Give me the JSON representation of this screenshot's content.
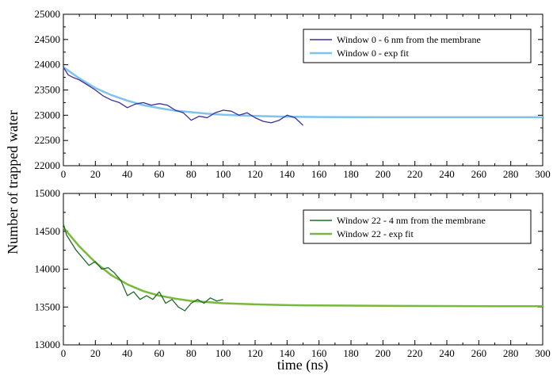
{
  "chart_data": [
    {
      "type": "line",
      "title": "",
      "xlabel": "time (ns)",
      "ylabel": "Number of trapped water",
      "xlim": [
        0,
        300
      ],
      "ylim": [
        22000,
        25000
      ],
      "xticks": [
        0,
        20,
        40,
        60,
        80,
        100,
        120,
        140,
        160,
        180,
        200,
        220,
        240,
        260,
        280,
        300
      ],
      "yticks": [
        22000,
        22500,
        23000,
        23500,
        24000,
        24500,
        25000
      ],
      "grid": false,
      "legend_position": "top-right",
      "series": [
        {
          "name": "Window 0 - 6 nm from the membrane",
          "color": "#3b2f9e",
          "x": [
            0,
            3,
            6,
            10,
            15,
            20,
            25,
            30,
            35,
            40,
            45,
            50,
            55,
            60,
            65,
            70,
            75,
            80,
            85,
            90,
            95,
            100,
            105,
            110,
            115,
            120,
            125,
            130,
            135,
            140,
            145,
            150
          ],
          "y": [
            23950,
            23800,
            23750,
            23700,
            23600,
            23500,
            23380,
            23300,
            23250,
            23150,
            23220,
            23250,
            23200,
            23230,
            23200,
            23100,
            23050,
            22900,
            22980,
            22950,
            23050,
            23100,
            23080,
            23000,
            23050,
            22950,
            22880,
            22850,
            22900,
            23000,
            22950,
            22800
          ]
        },
        {
          "name": "Window 0 - exp fit",
          "color": "#7ec3ea",
          "x": [
            0,
            10,
            20,
            30,
            40,
            50,
            60,
            70,
            80,
            90,
            100,
            120,
            140,
            160,
            200,
            250,
            300
          ],
          "y": [
            23950,
            23730,
            23540,
            23400,
            23290,
            23200,
            23140,
            23090,
            23060,
            23030,
            23010,
            22985,
            22970,
            22965,
            22960,
            22960,
            22960
          ]
        }
      ]
    },
    {
      "type": "line",
      "title": "",
      "xlabel": "time (ns)",
      "ylabel": "Number of trapped water",
      "xlim": [
        0,
        300
      ],
      "ylim": [
        13000,
        15000
      ],
      "xticks": [
        0,
        20,
        40,
        60,
        80,
        100,
        120,
        140,
        160,
        180,
        200,
        220,
        240,
        260,
        280,
        300
      ],
      "yticks": [
        13000,
        13500,
        14000,
        14500,
        15000
      ],
      "grid": false,
      "legend_position": "top-right",
      "series": [
        {
          "name": "Window 22 - 4 nm from the membrane",
          "color": "#1f6b2a",
          "x": [
            0,
            2,
            5,
            8,
            12,
            16,
            20,
            24,
            28,
            32,
            36,
            40,
            44,
            48,
            52,
            56,
            60,
            64,
            68,
            72,
            76,
            80,
            84,
            88,
            92,
            96,
            100
          ],
          "y": [
            14600,
            14450,
            14350,
            14250,
            14150,
            14050,
            14100,
            14000,
            14020,
            13950,
            13850,
            13650,
            13700,
            13600,
            13650,
            13600,
            13700,
            13550,
            13600,
            13500,
            13450,
            13550,
            13600,
            13550,
            13620,
            13580,
            13600
          ]
        },
        {
          "name": "Window 22 - exp fit",
          "color": "#78b83b",
          "x": [
            0,
            10,
            20,
            30,
            40,
            50,
            60,
            70,
            80,
            90,
            100,
            120,
            140,
            160,
            200,
            250,
            300
          ],
          "y": [
            14550,
            14300,
            14090,
            13920,
            13800,
            13710,
            13650,
            13610,
            13580,
            13565,
            13550,
            13535,
            13525,
            13520,
            13515,
            13512,
            13510
          ]
        }
      ]
    }
  ]
}
